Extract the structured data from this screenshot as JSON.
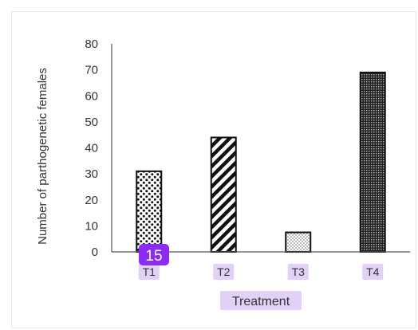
{
  "chart_data": {
    "type": "bar",
    "categories": [
      "T1",
      "T2",
      "T3",
      "T4"
    ],
    "values": [
      31,
      44,
      7.5,
      69
    ],
    "xlabel": "Treatment",
    "ylabel": "Number of parthogenetic females",
    "ylim": [
      0,
      80
    ],
    "yticks": [
      0,
      10,
      20,
      30,
      40,
      50,
      60,
      70,
      80
    ],
    "grid": false,
    "legend": "none",
    "patterns": [
      "dots",
      "diagonal-stripes",
      "fine-dots",
      "dense-grid"
    ]
  },
  "annotation": {
    "badge_text": "15",
    "badge_color": "#8b2cf5",
    "highlight_color": "#e2d0f7"
  }
}
